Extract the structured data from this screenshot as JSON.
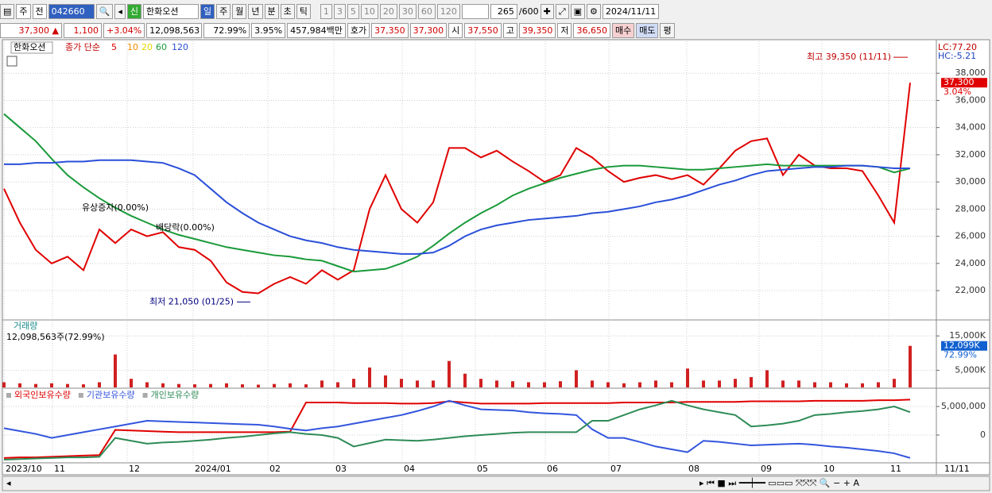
{
  "toolbar": {
    "period": "주",
    "prev": "전",
    "code": "042660",
    "new": "신",
    "name": "한화오션",
    "tabs": [
      "일",
      "주",
      "월",
      "년",
      "분",
      "초",
      "틱"
    ],
    "intervals": [
      "1",
      "3",
      "5",
      "10",
      "20",
      "30",
      "60",
      "120"
    ],
    "count": "265",
    "count_max": "/600",
    "date": "2024/11/11"
  },
  "quote": {
    "price": "37,300",
    "change": "1,100",
    "change_pct": "+3.04%",
    "volume": "12,098,563",
    "turnover": "72.99%",
    "rate": "3.95%",
    "amount": "457,984백만",
    "bid_label": "호가",
    "bid": "37,350",
    "ask": "37,300",
    "open_label": "시",
    "open": "37,550",
    "high_label": "고",
    "high": "39,350",
    "low_label": "저",
    "low": "36,650",
    "buy": "매수",
    "sell": "매도",
    "avg": "평"
  },
  "chart_data": [
    {
      "type": "line",
      "title": "한화오션",
      "subtitle": "종가 단순",
      "ylim": [
        19900,
        40350
      ],
      "yticks": [
        {
          "value": 22000,
          "label": "22,000"
        },
        {
          "value": 24000,
          "label": "24,000"
        },
        {
          "value": 26000,
          "label": "26,000"
        },
        {
          "value": 28000,
          "label": "28,000"
        },
        {
          "value": 30000,
          "label": "30,000"
        },
        {
          "value": 32000,
          "label": "32,000"
        },
        {
          "value": 34000,
          "label": "34,000"
        },
        {
          "value": 36000,
          "label": "36,000"
        },
        {
          "value": 38000,
          "label": "38,000"
        }
      ],
      "grid": true,
      "series": [
        {
          "name": "5",
          "color": "#e00000",
          "values": [
            29500,
            27000,
            25000,
            24000,
            24500,
            23500,
            26500,
            25500,
            26500,
            26000,
            26300,
            25200,
            25000,
            24200,
            22600,
            21900,
            21800,
            22500,
            23000,
            22500,
            23500,
            22800,
            23500,
            28000,
            30500,
            28000,
            27000,
            28500,
            32500,
            32500,
            31800,
            32300,
            31500,
            30800,
            30000,
            30500,
            32500,
            31800,
            30800,
            30000,
            30300,
            30500,
            30200,
            30500,
            29800,
            31000,
            32300,
            33000,
            33200,
            30500,
            32000,
            31200,
            31000,
            31000,
            30800,
            29000,
            27000,
            37300
          ]
        },
        {
          "name": "60",
          "color": "#1a9a3a",
          "values": [
            35000,
            34000,
            33000,
            31700,
            30500,
            29600,
            28800,
            28100,
            27500,
            27000,
            26500,
            26100,
            25800,
            25500,
            25200,
            25000,
            24800,
            24600,
            24500,
            24300,
            24200,
            23800,
            23400,
            23500,
            23600,
            24000,
            24500,
            25300,
            26200,
            27000,
            27700,
            28300,
            29000,
            29500,
            29900,
            30300,
            30600,
            30900,
            31100,
            31200,
            31200,
            31100,
            31000,
            30900,
            30900,
            31000,
            31100,
            31200,
            31300,
            31200,
            31200,
            31200,
            31200,
            31200,
            31200,
            31100,
            30700,
            31000
          ]
        },
        {
          "name": "120",
          "color": "#2a4fd8",
          "values": [
            31300,
            31300,
            31400,
            31400,
            31500,
            31500,
            31600,
            31600,
            31600,
            31500,
            31400,
            31000,
            30500,
            29500,
            28500,
            27700,
            27000,
            26500,
            26000,
            25700,
            25500,
            25200,
            25000,
            24900,
            24800,
            24700,
            24700,
            24800,
            25300,
            26000,
            26500,
            26800,
            27000,
            27200,
            27300,
            27400,
            27500,
            27700,
            27800,
            28000,
            28200,
            28500,
            28700,
            29000,
            29400,
            29800,
            30100,
            30500,
            30800,
            30900,
            31000,
            31100,
            31100,
            31200,
            31200,
            31100,
            31000,
            31000
          ]
        }
      ],
      "legend_only": [
        {
          "name": "10",
          "color": "#f08c00"
        },
        {
          "name": "20",
          "color": "#e6d800"
        }
      ],
      "corner_labels": [
        "LC:77.20",
        "HC:-5.21"
      ],
      "last": {
        "value": 37300,
        "label": "37,300"
      },
      "last_change": "3.04%",
      "annotations": [
        {
          "text": "최고 39,350 (11/11)",
          "value": 39350
        },
        {
          "text": "최저 21,050 (01/25)",
          "value": 21050
        },
        {
          "text": "유상증자(0.00%)"
        },
        {
          "text": "배당락(0.00%)"
        }
      ]
    },
    {
      "type": "bar",
      "title": "거래량",
      "subtitle": "12,098,563주(72.99%)",
      "color": "#d02020",
      "ylim": [
        0,
        19200
      ],
      "yticks": [
        {
          "value": 5000,
          "label": "5,000K"
        },
        {
          "value": 15000,
          "label": "15,000K"
        }
      ],
      "grid": true,
      "values": [
        1500,
        1200,
        1000,
        1200,
        1000,
        900,
        1500,
        9600,
        2500,
        1500,
        1200,
        1000,
        900,
        1000,
        1200,
        900,
        800,
        1000,
        1200,
        900,
        2000,
        1500,
        2500,
        5800,
        3500,
        2500,
        2000,
        2000,
        7700,
        4000,
        2500,
        2000,
        1800,
        1500,
        1500,
        1800,
        5000,
        2000,
        1500,
        1200,
        1500,
        2000,
        1500,
        5500,
        2000,
        2000,
        2500,
        3000,
        5000,
        2000,
        2000,
        1500,
        1500,
        1200,
        1200,
        1500,
        2500,
        12099
      ],
      "last": {
        "value": 12099,
        "label": "12,099K"
      },
      "last_pct": "72.99%"
    },
    {
      "type": "line",
      "ylim": [
        -4720000,
        7780000
      ],
      "yticks": [
        {
          "value": 0,
          "label": "0"
        },
        {
          "value": 5000000,
          "label": "5,000,000"
        }
      ],
      "grid": true,
      "series": [
        {
          "name": "외국인보유수량",
          "color": "#e00000",
          "values": [
            -4000000,
            -3900000,
            -3900000,
            -3800000,
            -3700000,
            -3600000,
            -3500000,
            900000,
            800000,
            700000,
            600000,
            500000,
            500000,
            500000,
            500000,
            500000,
            500000,
            500000,
            600000,
            5700000,
            5700000,
            5700000,
            5600000,
            5600000,
            5600000,
            5500000,
            5500000,
            5600000,
            5900000,
            5700000,
            5500000,
            5500000,
            5500000,
            5500000,
            5600000,
            5600000,
            5600000,
            5600000,
            5600000,
            5700000,
            5700000,
            5700000,
            5700000,
            5800000,
            5800000,
            5800000,
            5800000,
            5900000,
            5900000,
            5900000,
            5900000,
            6000000,
            6000000,
            6000000,
            6000000,
            6100000,
            6100000,
            6200000
          ]
        },
        {
          "name": "기관보유수량",
          "color": "#3355dd",
          "values": [
            1200000,
            700000,
            200000,
            -500000,
            0,
            500000,
            1000000,
            1500000,
            2000000,
            2500000,
            2400000,
            2300000,
            2200000,
            2100000,
            2000000,
            1900000,
            1800000,
            1500000,
            1100000,
            800000,
            1200000,
            1500000,
            2000000,
            2500000,
            3000000,
            3500000,
            4200000,
            5000000,
            6000000,
            5200000,
            4500000,
            4400000,
            4300000,
            4000000,
            3800000,
            3700000,
            3500000,
            1000000,
            -500000,
            -500000,
            -1200000,
            -2000000,
            -2500000,
            -3000000,
            -1000000,
            -1200000,
            -1500000,
            -1800000,
            -1700000,
            -1600000,
            -1500000,
            -1700000,
            -2000000,
            -2200000,
            -2500000,
            -2800000,
            -3200000,
            -4000000
          ]
        },
        {
          "name": "개인보유수량",
          "color": "#2e8b57",
          "values": [
            -4300000,
            -4200000,
            -4100000,
            -4000000,
            -3900000,
            -3900000,
            -3800000,
            -500000,
            -1000000,
            -1500000,
            -1300000,
            -1200000,
            -1000000,
            -800000,
            -500000,
            -300000,
            0,
            300000,
            500000,
            200000,
            0,
            -500000,
            -2000000,
            -1400000,
            -800000,
            -900000,
            -1000000,
            -800000,
            -500000,
            -200000,
            0,
            200000,
            400000,
            500000,
            500000,
            500000,
            500000,
            2500000,
            2500000,
            3500000,
            4500000,
            5200000,
            6000000,
            5200000,
            4500000,
            4000000,
            3500000,
            1500000,
            1700000,
            2000000,
            2500000,
            3500000,
            3700000,
            4000000,
            4200000,
            4500000,
            5000000,
            4000000
          ]
        }
      ]
    }
  ],
  "x_axis": {
    "labels": [
      "2023/10",
      "11",
      "12",
      "2024/01",
      "02",
      "03",
      "04",
      "05",
      "06",
      "07",
      "08",
      "09",
      "10",
      "11"
    ],
    "last": "11/11"
  }
}
